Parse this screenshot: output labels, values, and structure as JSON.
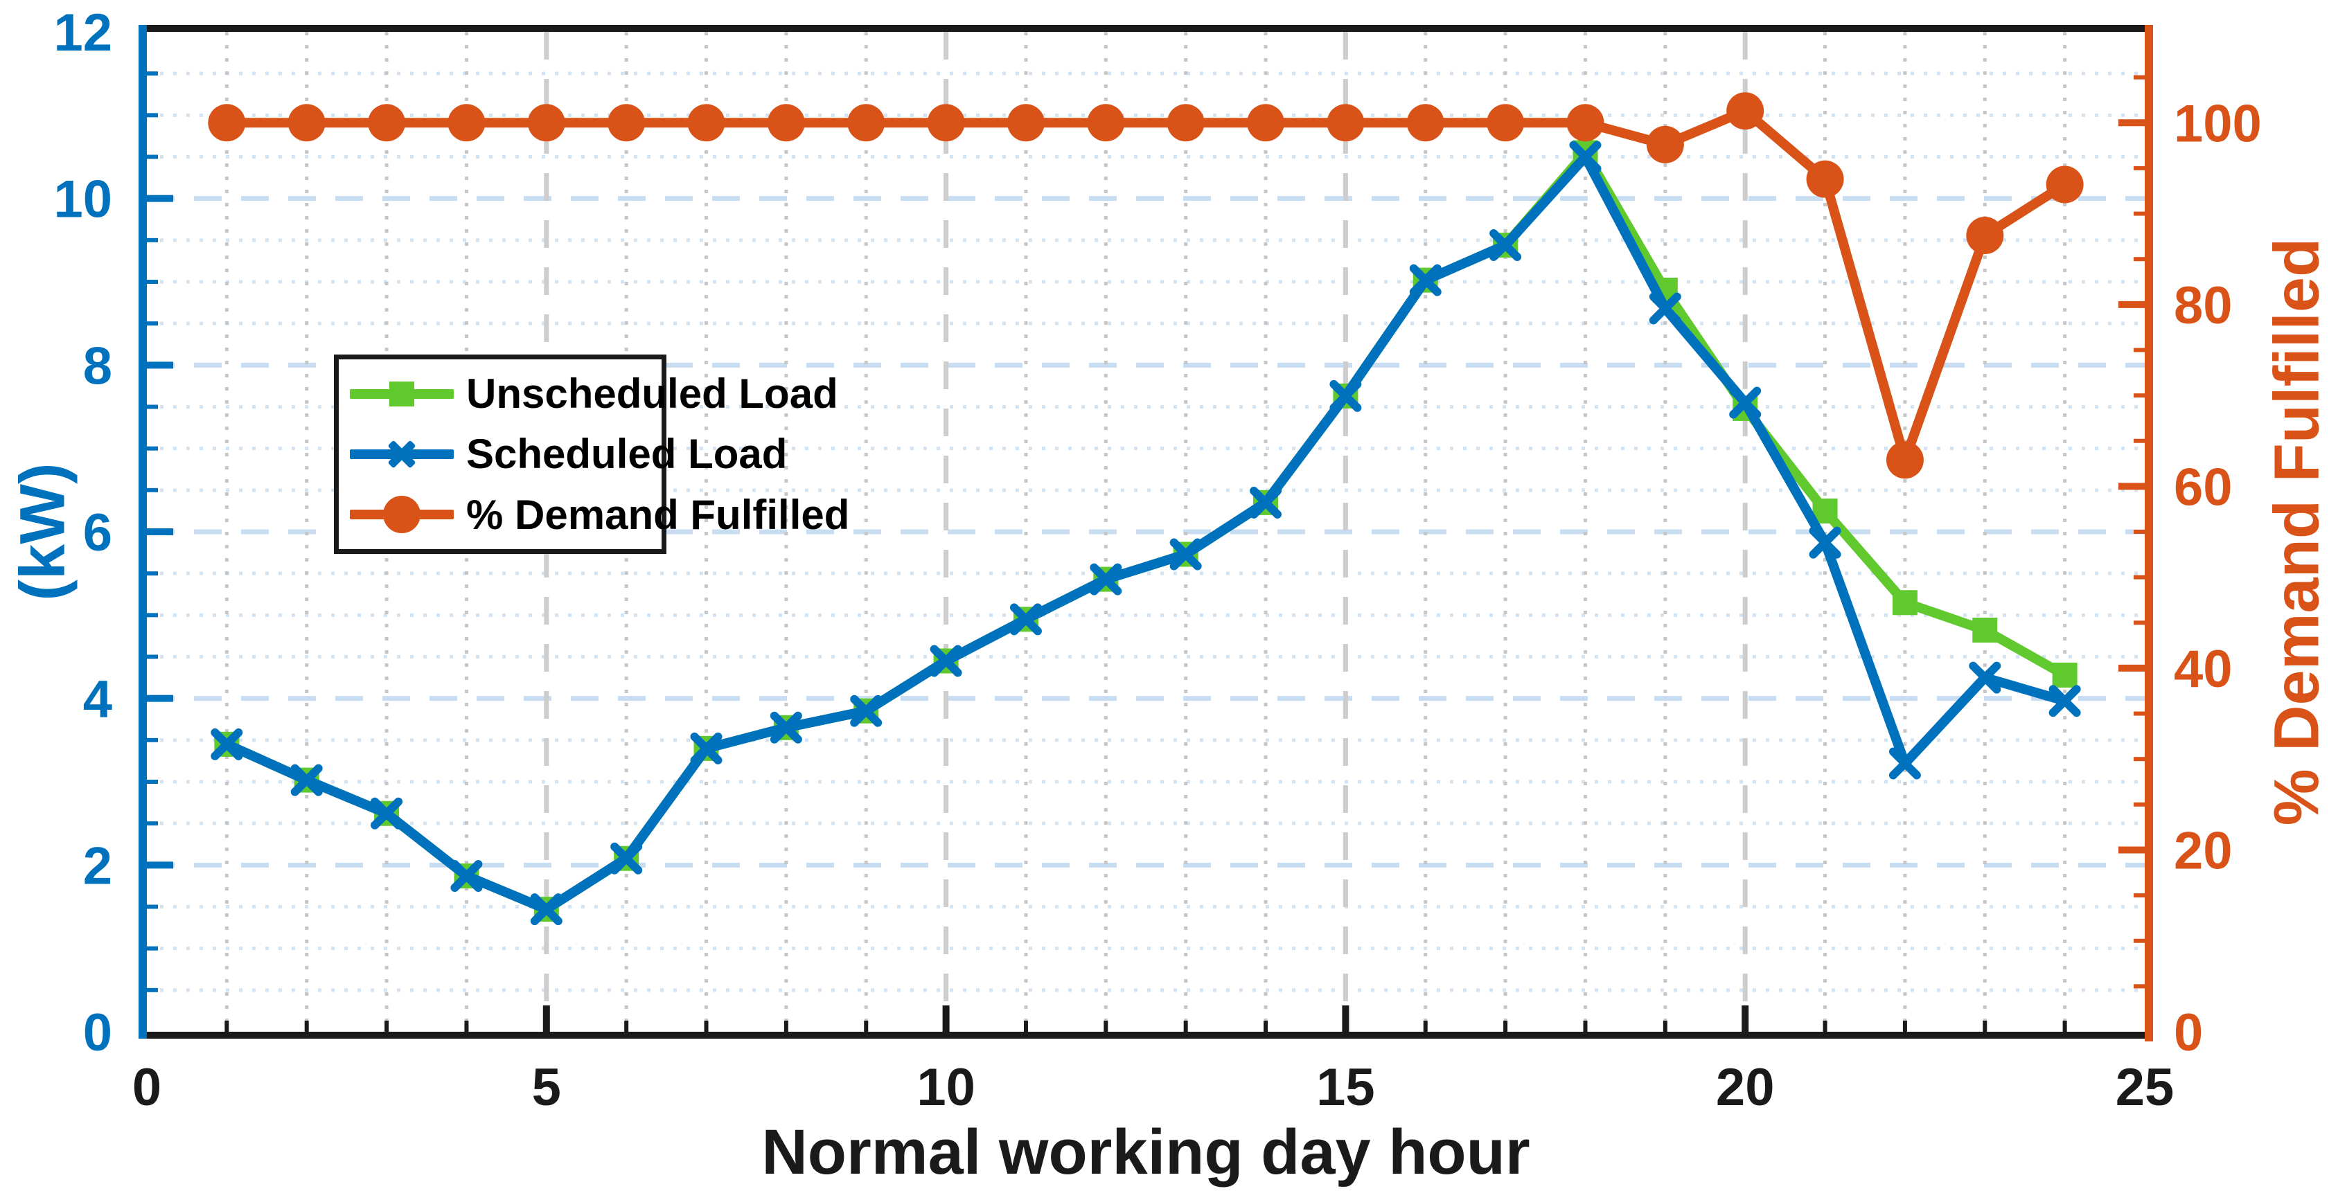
{
  "chart_data": {
    "type": "line",
    "title": "",
    "xlabel": "Normal working day hour",
    "ylabel_left": "(kW)",
    "ylabel_right": "% Demand Fulfilled",
    "xlim": [
      0,
      25
    ],
    "ylim_left": [
      0,
      12
    ],
    "ylim_right": [
      0,
      110
    ],
    "x_ticks": [
      0,
      5,
      10,
      15,
      20,
      25
    ],
    "y_ticks_left": [
      0,
      2,
      4,
      6,
      8,
      10,
      12
    ],
    "y_ticks_right": [
      0,
      20,
      40,
      60,
      80,
      100
    ],
    "grid": true,
    "legend_position": "upper-left-inside",
    "x": [
      1,
      2,
      3,
      4,
      5,
      6,
      7,
      8,
      9,
      10,
      11,
      12,
      13,
      14,
      15,
      16,
      17,
      18,
      19,
      20,
      21,
      22,
      23,
      24
    ],
    "series": [
      {
        "name": "Unscheduled Load",
        "axis": "left",
        "color": "#5FC92E",
        "marker": "square",
        "values": [
          3.45,
          3.02,
          2.62,
          1.87,
          1.47,
          2.08,
          3.4,
          3.65,
          3.85,
          4.45,
          4.95,
          5.43,
          5.73,
          6.35,
          7.63,
          9.02,
          9.44,
          10.55,
          8.9,
          7.48,
          6.25,
          5.15,
          4.82,
          4.28
        ]
      },
      {
        "name": "Scheduled Load",
        "axis": "left",
        "color": "#0072BD",
        "marker": "x",
        "values": [
          3.45,
          3.02,
          2.62,
          1.87,
          1.47,
          2.08,
          3.4,
          3.65,
          3.85,
          4.45,
          4.95,
          5.43,
          5.73,
          6.35,
          7.63,
          9.02,
          9.44,
          10.5,
          8.68,
          7.55,
          5.87,
          3.22,
          4.25,
          3.97
        ]
      },
      {
        "name": "% Demand Fulfilled",
        "axis": "right",
        "color": "#D95319",
        "marker": "circle",
        "values": [
          100,
          100,
          100,
          100,
          100,
          100,
          100,
          100,
          100,
          100,
          100,
          100,
          100,
          100,
          100,
          100,
          100,
          100,
          97.6,
          101.3,
          93.8,
          62.9,
          87.6,
          93.2
        ]
      }
    ],
    "colors": {
      "left_axis": "#0072BD",
      "right_axis": "#D95319",
      "x_axis": "#1a1a1a",
      "grid_h_major": "#c8ddf1",
      "grid_h_minor": "#d2e3f3",
      "grid_v_major": "#cdcdcd",
      "grid_v_minor": "#c6c6c6"
    }
  }
}
